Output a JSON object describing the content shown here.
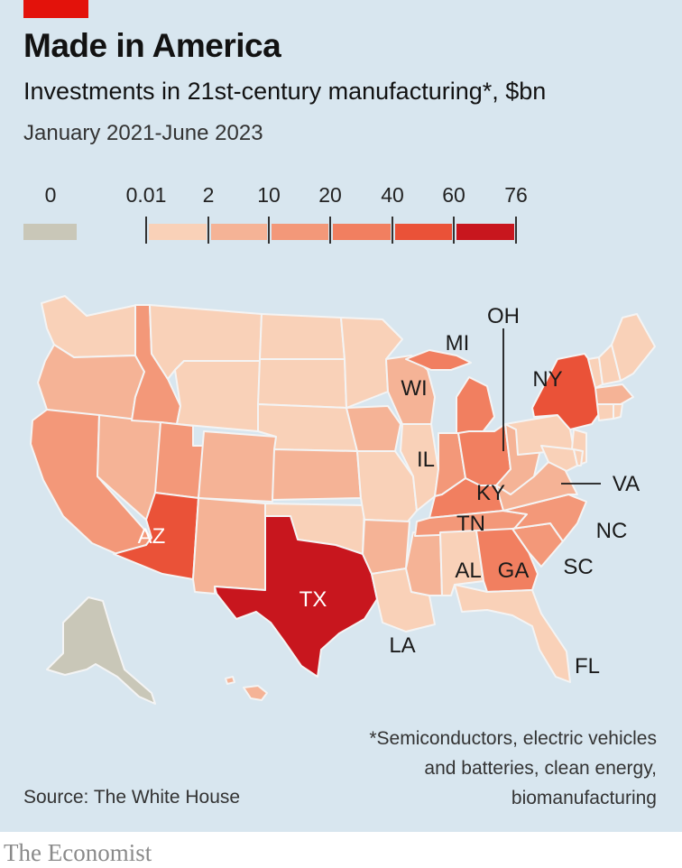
{
  "header": {
    "title": "Made in America",
    "subtitle": "Investments in 21st-century manufacturing*, $bn",
    "period": "January 2021-June 2023"
  },
  "legend": {
    "zero_label": "0",
    "zero_color": "#c9c7b8",
    "bins": [
      {
        "from": "0.01",
        "to": "2",
        "color": "#f9d1b8"
      },
      {
        "from": "2",
        "to": "10",
        "color": "#f5b396"
      },
      {
        "from": "10",
        "to": "20",
        "color": "#f39879"
      },
      {
        "from": "20",
        "to": "40",
        "color": "#f17f60"
      },
      {
        "from": "40",
        "to": "60",
        "color": "#ea5238"
      },
      {
        "from": "60",
        "to": "76",
        "color": "#c8161e"
      }
    ],
    "tick_labels": [
      "0.01",
      "2",
      "10",
      "20",
      "40",
      "60",
      "76"
    ]
  },
  "map": {
    "state_labels": [
      "OH",
      "MI",
      "NY",
      "WI",
      "IL",
      "KY",
      "VA",
      "TN",
      "NC",
      "AZ",
      "AL",
      "GA",
      "SC",
      "TX",
      "LA",
      "FL"
    ],
    "bin_by_state": {
      "WA": 1,
      "OR": 2,
      "CA": 3,
      "NV": 2,
      "ID": 3,
      "MT": 1,
      "WY": 1,
      "UT": 3,
      "CO": 2,
      "AZ": 5,
      "NM": 2,
      "ND": 1,
      "SD": 1,
      "NE": 1,
      "KS": 2,
      "OK": 1,
      "TX": 6,
      "MN": 1,
      "IA": 2,
      "MO": 1,
      "AR": 2,
      "LA": 1,
      "WI": 2,
      "IL": 1,
      "MS": 2,
      "MI": 4,
      "IN": 3,
      "OH": 4,
      "KY": 4,
      "TN": 3,
      "AL": 1,
      "GA": 4,
      "FL": 1,
      "SC": 3,
      "NC": 3,
      "VA": 2,
      "WV": 2,
      "PA": 1,
      "NY": 5,
      "VT": 1,
      "NH": 1,
      "ME": 1,
      "MA": 2,
      "NJ": 1,
      "MD": 1,
      "DE": 1,
      "CT": 1,
      "RI": 1,
      "AK": 0,
      "HI": 2
    }
  },
  "footnote": [
    "*Semiconductors, electric vehicles",
    "and batteries, clean energy,",
    "biomanufacturing"
  ],
  "source": "Source: The White House",
  "brand": "The Economist"
}
